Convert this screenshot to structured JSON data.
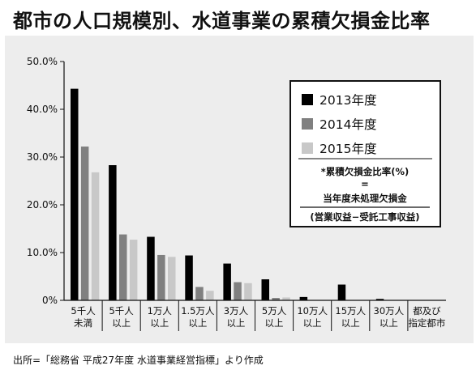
{
  "title": "都市の人口規模別、水道事業の累積欠損金比率",
  "source": "出所=「総務省 平成27年度 水道事業経営指標」より作成",
  "formula": {
    "line1": "*累積欠損金比率(%)",
    "line2": "=",
    "line3": "当年度未処理欠損金",
    "line4": "(営業収益−受託工事収益)"
  },
  "chart_data": {
    "type": "bar",
    "title": "都市の人口規模別、水道事業の累積欠損金比率",
    "categories": [
      [
        "5千人",
        "未満"
      ],
      [
        "5千人",
        "以上"
      ],
      [
        "1万人",
        "以上"
      ],
      [
        "1.5万人",
        "以上"
      ],
      [
        "3万人",
        "以上"
      ],
      [
        "5万人",
        "以上"
      ],
      [
        "10万人",
        "以上"
      ],
      [
        "15万人",
        "以上"
      ],
      [
        "30万人",
        "以上"
      ],
      [
        "都及び",
        "指定都市"
      ]
    ],
    "series": [
      {
        "name": "2013年度",
        "color": "#000000",
        "values": [
          44.3,
          28.3,
          13.3,
          9.4,
          7.7,
          4.4,
          0.7,
          3.3,
          0.3,
          0.0
        ]
      },
      {
        "name": "2014年度",
        "color": "#808080",
        "values": [
          32.2,
          13.8,
          9.5,
          2.8,
          3.8,
          0.5,
          0.0,
          0.0,
          0.0,
          0.0
        ]
      },
      {
        "name": "2015年度",
        "color": "#c8c8c8",
        "values": [
          26.8,
          12.7,
          9.1,
          2.0,
          3.6,
          0.6,
          0.0,
          0.0,
          0.0,
          0.0
        ]
      }
    ],
    "yticks": [
      "0%",
      "10.0%",
      "20.0%",
      "30.0%",
      "40.0%",
      "50.0%"
    ],
    "ylim": [
      0,
      50
    ],
    "legend_position": "top-right"
  }
}
